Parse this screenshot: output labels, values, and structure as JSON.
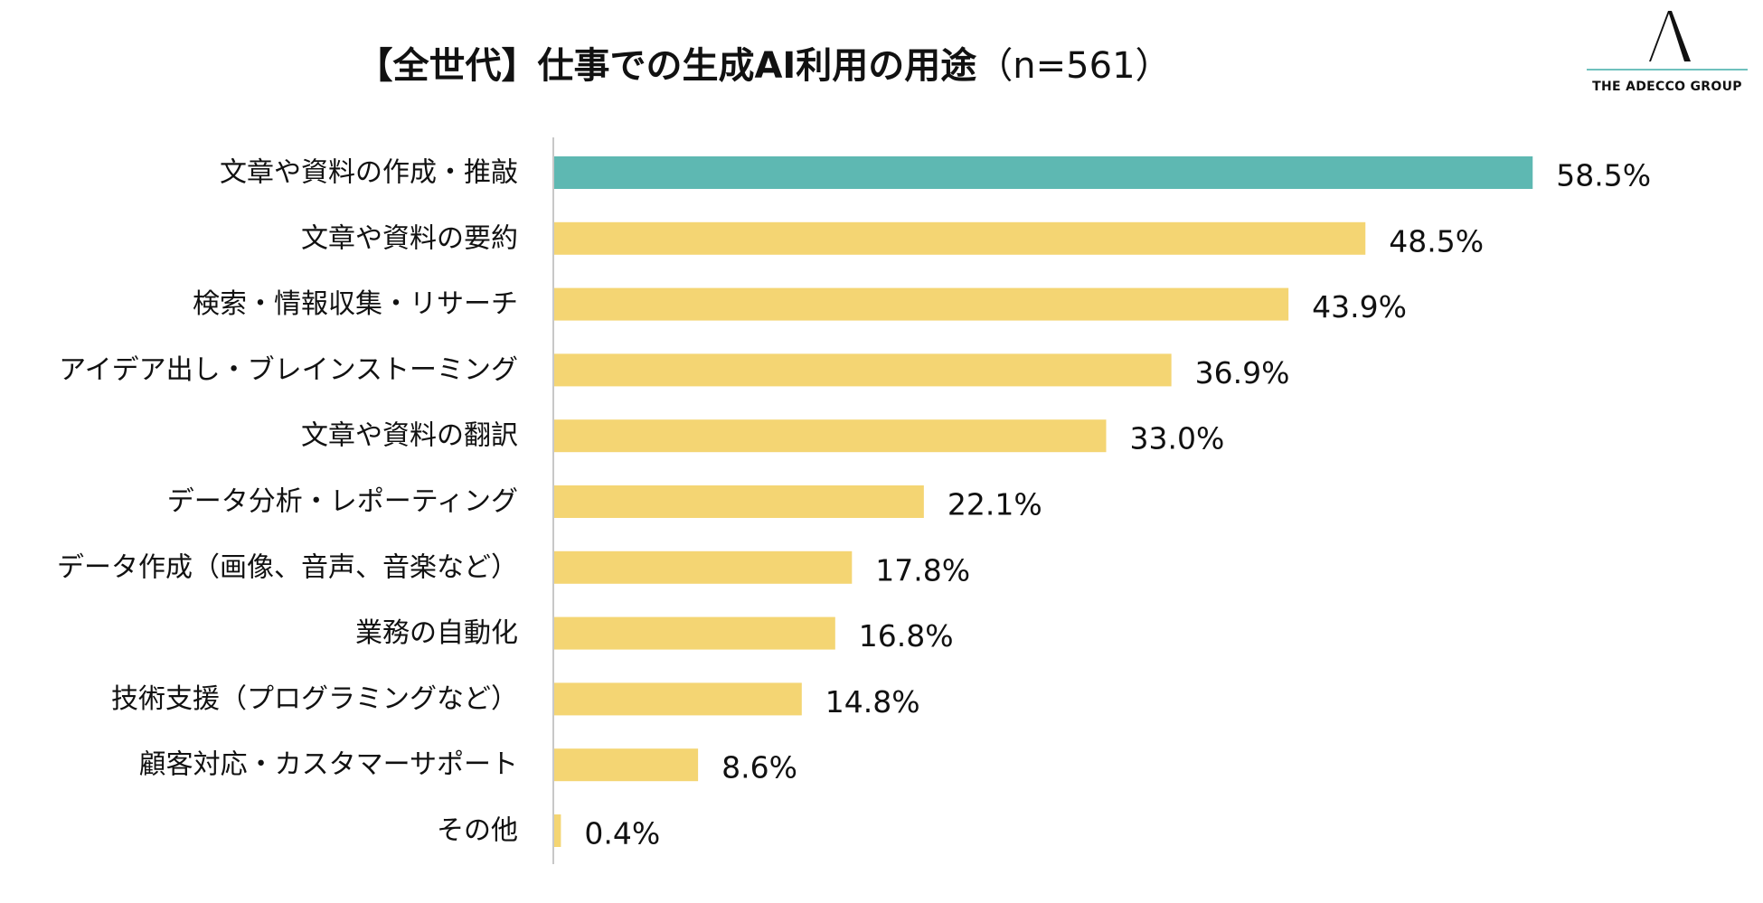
{
  "title": {
    "main": "【全世代】仕事での生成AI利用の用途",
    "n_label": "（n=561）"
  },
  "logo": {
    "text": "THE ADECCO GROUP",
    "mark": "A"
  },
  "colors": {
    "highlight": "#5eb8b2",
    "bar": "#f4d573",
    "axis": "#c8c8c8",
    "logo_rule": "#6fc1bd"
  },
  "chart_data": {
    "type": "bar",
    "orientation": "horizontal",
    "title": "【全世代】仕事での生成AI利用の用途（n=561）",
    "unit": "%",
    "categories": [
      "文章や資料の作成・推敲",
      "文章や資料の要約",
      "検索・情報収集・リサーチ",
      "アイデア出し・ブレインストーミング",
      "文章や資料の翻訳",
      "データ分析・レポーティング",
      "データ作成（画像、音声、音楽など）",
      "業務の自動化",
      "技術支援（プログラミングなど）",
      "顧客対応・カスタマーサポート",
      "その他"
    ],
    "values": [
      58.5,
      48.5,
      43.9,
      36.9,
      33.0,
      22.1,
      17.8,
      16.8,
      14.8,
      8.6,
      0.4
    ],
    "data_labels": [
      "58.5%",
      "48.5%",
      "43.9%",
      "36.9%",
      "33.0%",
      "22.1%",
      "17.8%",
      "16.8%",
      "14.8%",
      "8.6%",
      "0.4%"
    ],
    "highlight_index": 0,
    "xlim": [
      0,
      60
    ],
    "grid": false,
    "xlabel": "",
    "ylabel": ""
  }
}
